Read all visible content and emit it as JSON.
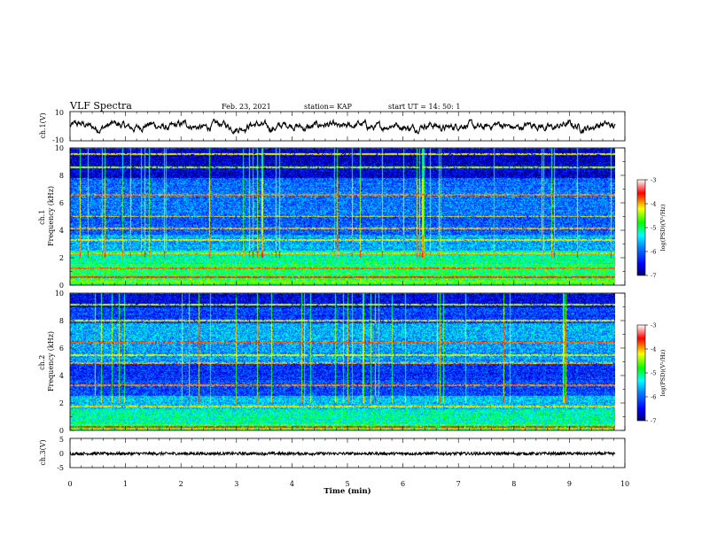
{
  "header": {
    "title": "VLF Spectra",
    "date": "Feb. 23, 2021",
    "station": "station= KAP",
    "start": "start  UT =   14: 50: 1"
  },
  "chart_data": [
    {
      "type": "line",
      "name": "channel-1-waveform",
      "ylabel": "ch.1(V)",
      "ylim": [
        -10,
        10
      ],
      "yticks": [
        "10",
        "-10"
      ],
      "xlim": [
        0,
        10
      ],
      "x_extent": [
        0,
        9.83
      ],
      "value_range": [
        -5,
        5
      ]
    },
    {
      "type": "heatmap",
      "name": "channel-1-spectrogram",
      "ylabel": "ch.1\nFrequency  (kHz)",
      "ylim": [
        0,
        10
      ],
      "yticks": [
        "0",
        "2",
        "4",
        "6",
        "8",
        "10"
      ],
      "xlim": [
        0,
        10
      ],
      "x_extent": [
        0,
        9.83
      ],
      "colorbar": {
        "label": "log(PSD)(V²/Hz)",
        "range": [
          -7,
          -3
        ],
        "ticks": [
          "-3",
          "-4",
          "-5",
          "-6",
          "-7"
        ]
      },
      "bands": [
        {
          "from": 0.0,
          "to": 0.4,
          "level": 0.55
        },
        {
          "from": 0.4,
          "to": 1.5,
          "level": 0.52
        },
        {
          "from": 1.5,
          "to": 2.5,
          "level": 0.46
        },
        {
          "from": 2.5,
          "to": 3.7,
          "level": 0.33
        },
        {
          "from": 3.7,
          "to": 5.0,
          "level": 0.24
        },
        {
          "from": 5.0,
          "to": 6.5,
          "level": 0.27
        },
        {
          "from": 6.5,
          "to": 7.8,
          "level": 0.26
        },
        {
          "from": 7.8,
          "to": 9.0,
          "level": 0.09
        },
        {
          "from": 9.0,
          "to": 10.0,
          "level": 0.07
        }
      ],
      "lines": [
        {
          "f": 0.25,
          "level": 0.62
        },
        {
          "f": 0.55,
          "level": 0.85
        },
        {
          "f": 1.2,
          "level": 0.8
        },
        {
          "f": 2.3,
          "level": 0.74
        },
        {
          "f": 3.3,
          "level": 0.7
        },
        {
          "f": 4.1,
          "level": 0.75
        },
        {
          "f": 5.0,
          "level": 0.72
        },
        {
          "f": 6.6,
          "level": 0.78
        },
        {
          "f": 8.6,
          "level": 0.65
        },
        {
          "f": 9.6,
          "level": 0.7
        }
      ]
    },
    {
      "type": "heatmap",
      "name": "channel-2-spectrogram",
      "ylabel": "ch.2\nFrequency  (kHz)",
      "ylim": [
        0,
        10
      ],
      "yticks": [
        "0",
        "2",
        "4",
        "6",
        "8",
        "10"
      ],
      "xlim": [
        0,
        10
      ],
      "x_extent": [
        0,
        9.83
      ],
      "colorbar": {
        "label": "log(PSD)(V²/Hz)",
        "range": [
          -7,
          -3
        ],
        "ticks": [
          "-3",
          "-4",
          "-5",
          "-6",
          "-7"
        ]
      },
      "bands": [
        {
          "from": 0.0,
          "to": 0.4,
          "level": 0.55
        },
        {
          "from": 0.4,
          "to": 1.5,
          "level": 0.45
        },
        {
          "from": 1.5,
          "to": 2.5,
          "level": 0.36
        },
        {
          "from": 2.5,
          "to": 3.7,
          "level": 0.22
        },
        {
          "from": 3.7,
          "to": 5.0,
          "level": 0.18
        },
        {
          "from": 5.0,
          "to": 6.5,
          "level": 0.32
        },
        {
          "from": 6.5,
          "to": 7.8,
          "level": 0.34
        },
        {
          "from": 7.8,
          "to": 9.0,
          "level": 0.2
        },
        {
          "from": 9.0,
          "to": 10.0,
          "level": 0.1
        }
      ],
      "lines": [
        {
          "f": 0.25,
          "level": 0.85
        },
        {
          "f": 1.7,
          "level": 0.72
        },
        {
          "f": 3.3,
          "level": 0.78
        },
        {
          "f": 4.9,
          "level": 0.75
        },
        {
          "f": 5.5,
          "level": 0.68
        },
        {
          "f": 6.4,
          "level": 0.8
        },
        {
          "f": 8.0,
          "level": 0.7
        },
        {
          "f": 9.2,
          "level": 0.66
        }
      ]
    },
    {
      "type": "line",
      "name": "channel-3-waveform",
      "ylabel": "ch.3(V)",
      "ylim": [
        -5,
        5
      ],
      "yticks": [
        "5",
        "0",
        "-5"
      ],
      "xlim": [
        0,
        10
      ],
      "x_extent": [
        0,
        9.83
      ],
      "value_range": [
        -0.7,
        0.3
      ]
    }
  ],
  "x_axis": {
    "label": "Time  (min)",
    "ticks": [
      "0",
      "1",
      "2",
      "3",
      "4",
      "5",
      "6",
      "7",
      "8",
      "9",
      "10"
    ]
  },
  "colors": {
    "colormap": [
      "#000070",
      "#0000ff",
      "#0088ff",
      "#00ffff",
      "#00ff00",
      "#ffff00",
      "#ff0000",
      "#ffffff"
    ]
  }
}
